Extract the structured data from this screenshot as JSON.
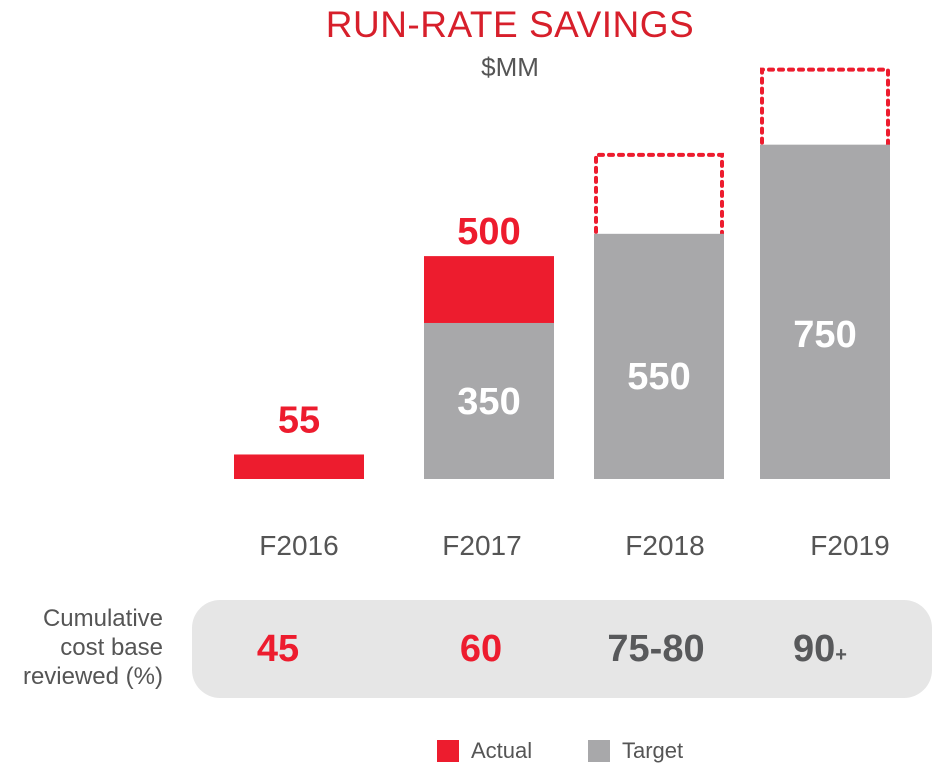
{
  "chart_data": {
    "type": "bar",
    "title": "RUN-RATE SAVINGS",
    "subtitle": "$MM",
    "categories": [
      "F2016",
      "F2017",
      "F2018",
      "F2019"
    ],
    "series": [
      {
        "name": "Actual",
        "values": [
          55,
          500,
          null,
          null
        ]
      },
      {
        "name": "Target",
        "values": [
          null,
          350,
          550,
          750
        ]
      }
    ],
    "data_labels": [
      "55",
      "350",
      "550",
      "750"
    ],
    "actual_total_label": "500",
    "ylim": [
      0,
      830
    ],
    "grid": false,
    "legend": "bottom-center",
    "summary": {
      "label": "Cumulative cost base reviewed (%)",
      "values": [
        "45",
        "60",
        "75-80",
        "90"
      ],
      "suffixes": [
        "",
        "",
        "",
        "+"
      ]
    }
  },
  "legend": {
    "actual": "Actual",
    "target": "Target"
  },
  "colors": {
    "actual": "#ed1c2e",
    "target": "#a8a8aa",
    "title": "#d71f2b",
    "text": "#555555"
  }
}
